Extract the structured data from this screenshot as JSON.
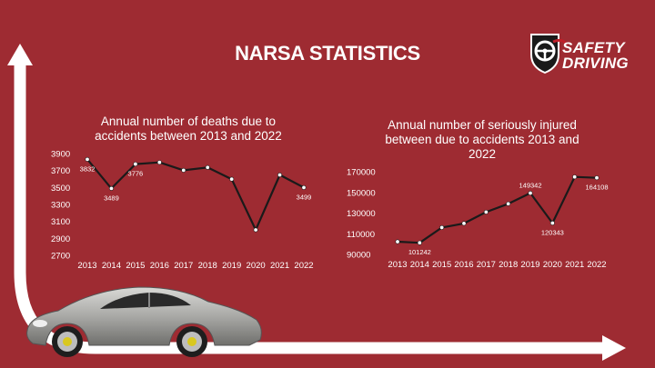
{
  "slide": {
    "title": "NARSA STATISTICS",
    "logo": {
      "line1": "SAFETY",
      "line2": "DRIVING",
      "icon": "steering-wheel-shield-icon"
    }
  },
  "colors": {
    "background": "#9e2b32",
    "text": "#ffffff",
    "line": "#1a1a1a",
    "marker": "#ffffff",
    "arrow": "#ffffff"
  },
  "chart_data": [
    {
      "type": "line",
      "title_lines": [
        "Annual number of deaths due to",
        "accidents between 2013 and 2022"
      ],
      "categories": [
        "2013",
        "2014",
        "2015",
        "2016",
        "2017",
        "2018",
        "2019",
        "2020",
        "2021",
        "2022"
      ],
      "values": [
        3832,
        3489,
        3776,
        3796,
        3703,
        3736,
        3598,
        3000,
        3648,
        3499
      ],
      "ylim": [
        2700,
        3900
      ],
      "yticks": [
        2700,
        2900,
        3100,
        3300,
        3500,
        3700,
        3900
      ],
      "data_labels": [
        {
          "index": 0,
          "text": "3832",
          "pos": "below"
        },
        {
          "index": 1,
          "text": "3489",
          "pos": "below"
        },
        {
          "index": 2,
          "text": "3776",
          "pos": "below"
        },
        {
          "index": 9,
          "text": "3499",
          "pos": "below"
        }
      ],
      "grid": false
    },
    {
      "type": "line",
      "title_lines": [
        "Annual number of seriously injured",
        "between due to accidents 2013 and",
        "2022"
      ],
      "categories": [
        "2013",
        "2014",
        "2015",
        "2016",
        "2017",
        "2018",
        "2019",
        "2020",
        "2021",
        "2022"
      ],
      "values": [
        102300,
        101242,
        116000,
        120000,
        131000,
        139000,
        149342,
        120343,
        165000,
        164108
      ],
      "ylim": [
        90000,
        170000
      ],
      "yticks": [
        90000,
        110000,
        130000,
        150000,
        170000
      ],
      "data_labels": [
        {
          "index": 1,
          "text": "101242",
          "pos": "below"
        },
        {
          "index": 6,
          "text": "149342",
          "pos": "above"
        },
        {
          "index": 7,
          "text": "120343",
          "pos": "below"
        },
        {
          "index": 9,
          "text": "164108",
          "pos": "below"
        }
      ],
      "grid": false
    }
  ]
}
